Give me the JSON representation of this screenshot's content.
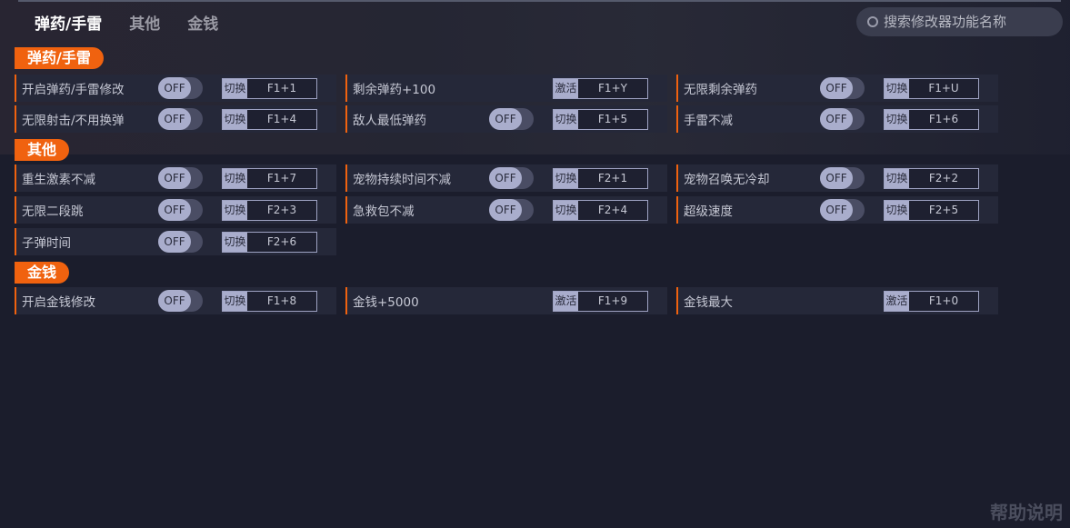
{
  "tabs": [
    "弹药/手雷",
    "其他",
    "金钱"
  ],
  "search": {
    "placeholder": "搜索修改器功能名称"
  },
  "sections": [
    {
      "title": "弹药/手雷",
      "items": [
        {
          "name": "开启弹药/手雷修改",
          "toggle": "OFF",
          "mode": "切换",
          "key": "F1+1"
        },
        {
          "name": "剩余弹药+100",
          "toggle": null,
          "mode": "激活",
          "key": "F1+Y"
        },
        {
          "name": "无限剩余弹药",
          "toggle": "OFF",
          "mode": "切换",
          "key": "F1+U"
        },
        {
          "name": "无限射击/不用换弹",
          "toggle": "OFF",
          "mode": "切换",
          "key": "F1+4"
        },
        {
          "name": "敌人最低弹药",
          "toggle": "OFF",
          "mode": "切换",
          "key": "F1+5"
        },
        {
          "name": "手雷不减",
          "toggle": "OFF",
          "mode": "切换",
          "key": "F1+6"
        }
      ]
    },
    {
      "title": "其他",
      "items": [
        {
          "name": "重生激素不减",
          "toggle": "OFF",
          "mode": "切换",
          "key": "F1+7"
        },
        {
          "name": "宠物持续时间不减",
          "toggle": "OFF",
          "mode": "切换",
          "key": "F2+1"
        },
        {
          "name": "宠物召唤无冷却",
          "toggle": "OFF",
          "mode": "切换",
          "key": "F2+2"
        },
        {
          "name": "无限二段跳",
          "toggle": "OFF",
          "mode": "切换",
          "key": "F2+3"
        },
        {
          "name": "急救包不减",
          "toggle": "OFF",
          "mode": "切换",
          "key": "F2+4"
        },
        {
          "name": "超级速度",
          "toggle": "OFF",
          "mode": "切换",
          "key": "F2+5"
        },
        {
          "name": "子弹时间",
          "toggle": "OFF",
          "mode": "切换",
          "key": "F2+6"
        }
      ]
    },
    {
      "title": "金钱",
      "items": [
        {
          "name": "开启金钱修改",
          "toggle": "OFF",
          "mode": "切换",
          "key": "F1+8"
        },
        {
          "name": "金钱+5000",
          "toggle": null,
          "mode": "激活",
          "key": "F1+9"
        },
        {
          "name": "金钱最大",
          "toggle": null,
          "mode": "激活",
          "key": "F1+0"
        }
      ]
    }
  ],
  "help": "帮助说明",
  "colors": {
    "accent": "#f0620f",
    "background": "#1b1d2c",
    "row": "#252839"
  }
}
